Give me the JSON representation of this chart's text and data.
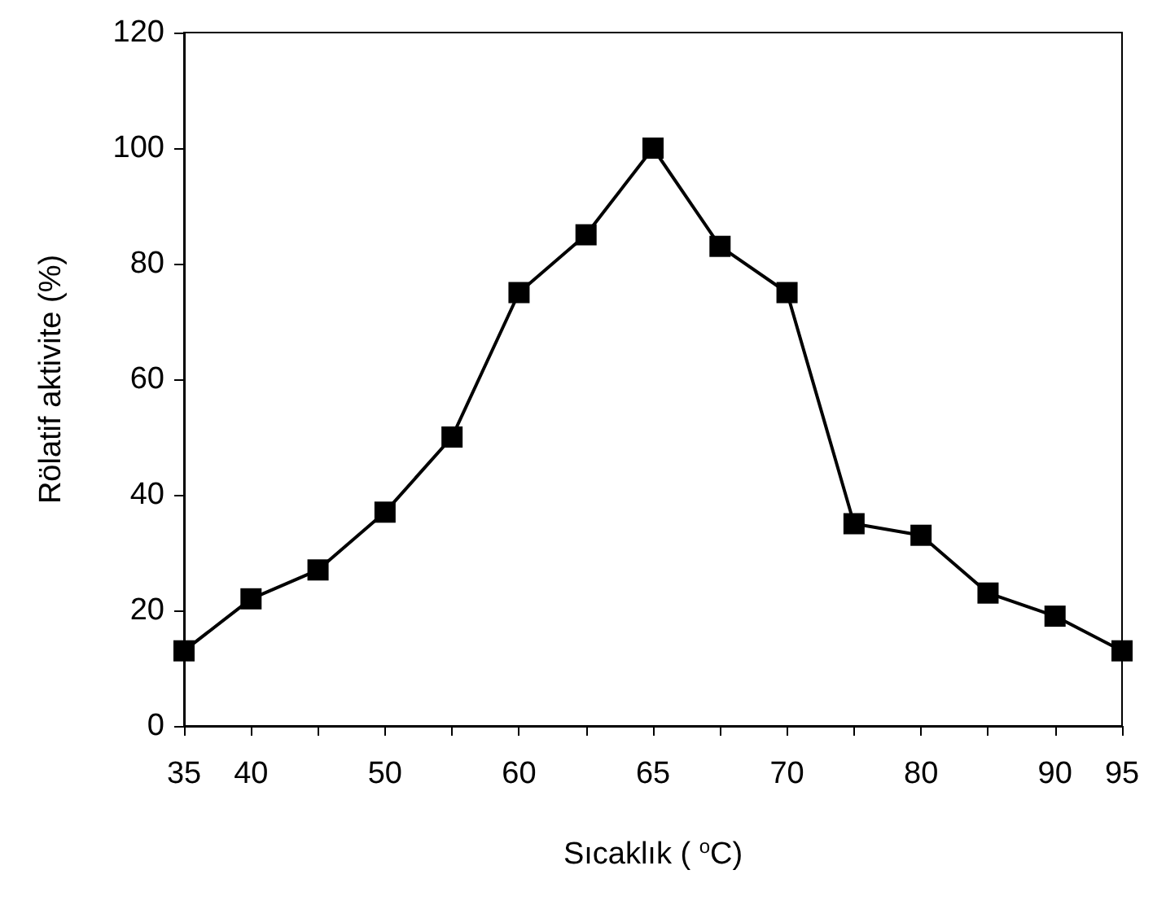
{
  "chart_data": {
    "type": "line",
    "xlabel": "Sıcaklık ( $^{o}$C)",
    "ylabel": "Rölatif aktivite (%)",
    "categories": [
      "35",
      "40",
      null,
      "50",
      null,
      "60",
      null,
      "65",
      null,
      "70",
      null,
      "80",
      null,
      "90",
      "95"
    ],
    "series": [
      {
        "color": "#000000",
        "values": [
          13,
          22,
          27,
          37,
          50,
          75,
          85,
          100,
          83,
          75,
          35,
          33,
          23,
          19,
          13
        ]
      }
    ],
    "ylim": [
      0,
      120
    ],
    "yticks": [
      0,
      20,
      40,
      60,
      80,
      100,
      120
    ],
    "grid": false,
    "marker": "square",
    "line_style": "solid"
  }
}
